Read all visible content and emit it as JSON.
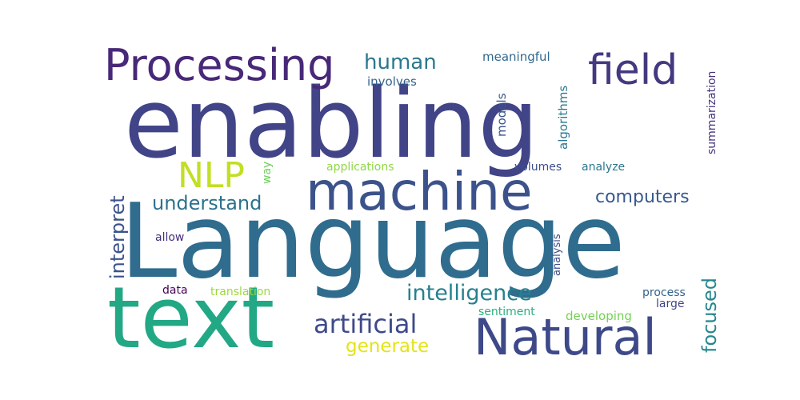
{
  "word_cloud": {
    "words": [
      {
        "text": "enabling",
        "color": "#414487"
      },
      {
        "text": "Language",
        "color": "#2f6c8e"
      },
      {
        "text": "text",
        "color": "#22a884"
      },
      {
        "text": "machine",
        "color": "#3b528b"
      },
      {
        "text": "Processing",
        "color": "#482878"
      },
      {
        "text": "field",
        "color": "#44397f"
      },
      {
        "text": "Natural",
        "color": "#3e4989"
      },
      {
        "text": "NLP",
        "color": "#c2df23"
      },
      {
        "text": "human",
        "color": "#2a788e"
      },
      {
        "text": "artificial",
        "color": "#3e4a89"
      },
      {
        "text": "intelligence",
        "color": "#27808e"
      },
      {
        "text": "understand",
        "color": "#2c718e"
      },
      {
        "text": "computers",
        "color": "#38598c"
      },
      {
        "text": "interpret",
        "color": "#3b528b"
      },
      {
        "text": "focused",
        "color": "#24868e"
      },
      {
        "text": "generate",
        "color": "#e3e418"
      },
      {
        "text": "meaningful",
        "color": "#31688e"
      },
      {
        "text": "involves",
        "color": "#33638d"
      },
      {
        "text": "algorithms",
        "color": "#2a788e"
      },
      {
        "text": "models",
        "color": "#3a548c"
      },
      {
        "text": "summarization",
        "color": "#46337e"
      },
      {
        "text": "way",
        "color": "#6ccd5a"
      },
      {
        "text": "applications",
        "color": "#8fd744"
      },
      {
        "text": "volumes",
        "color": "#3d4e8a"
      },
      {
        "text": "analyze",
        "color": "#2a768e"
      },
      {
        "text": "allow",
        "color": "#472f7d"
      },
      {
        "text": "analysis",
        "color": "#3d4d8a"
      },
      {
        "text": "data",
        "color": "#440154"
      },
      {
        "text": "translation",
        "color": "#9dd93b"
      },
      {
        "text": "process",
        "color": "#33638d"
      },
      {
        "text": "large",
        "color": "#414487"
      },
      {
        "text": "sentiment",
        "color": "#2ab07f"
      },
      {
        "text": "developing",
        "color": "#75d054"
      }
    ]
  }
}
